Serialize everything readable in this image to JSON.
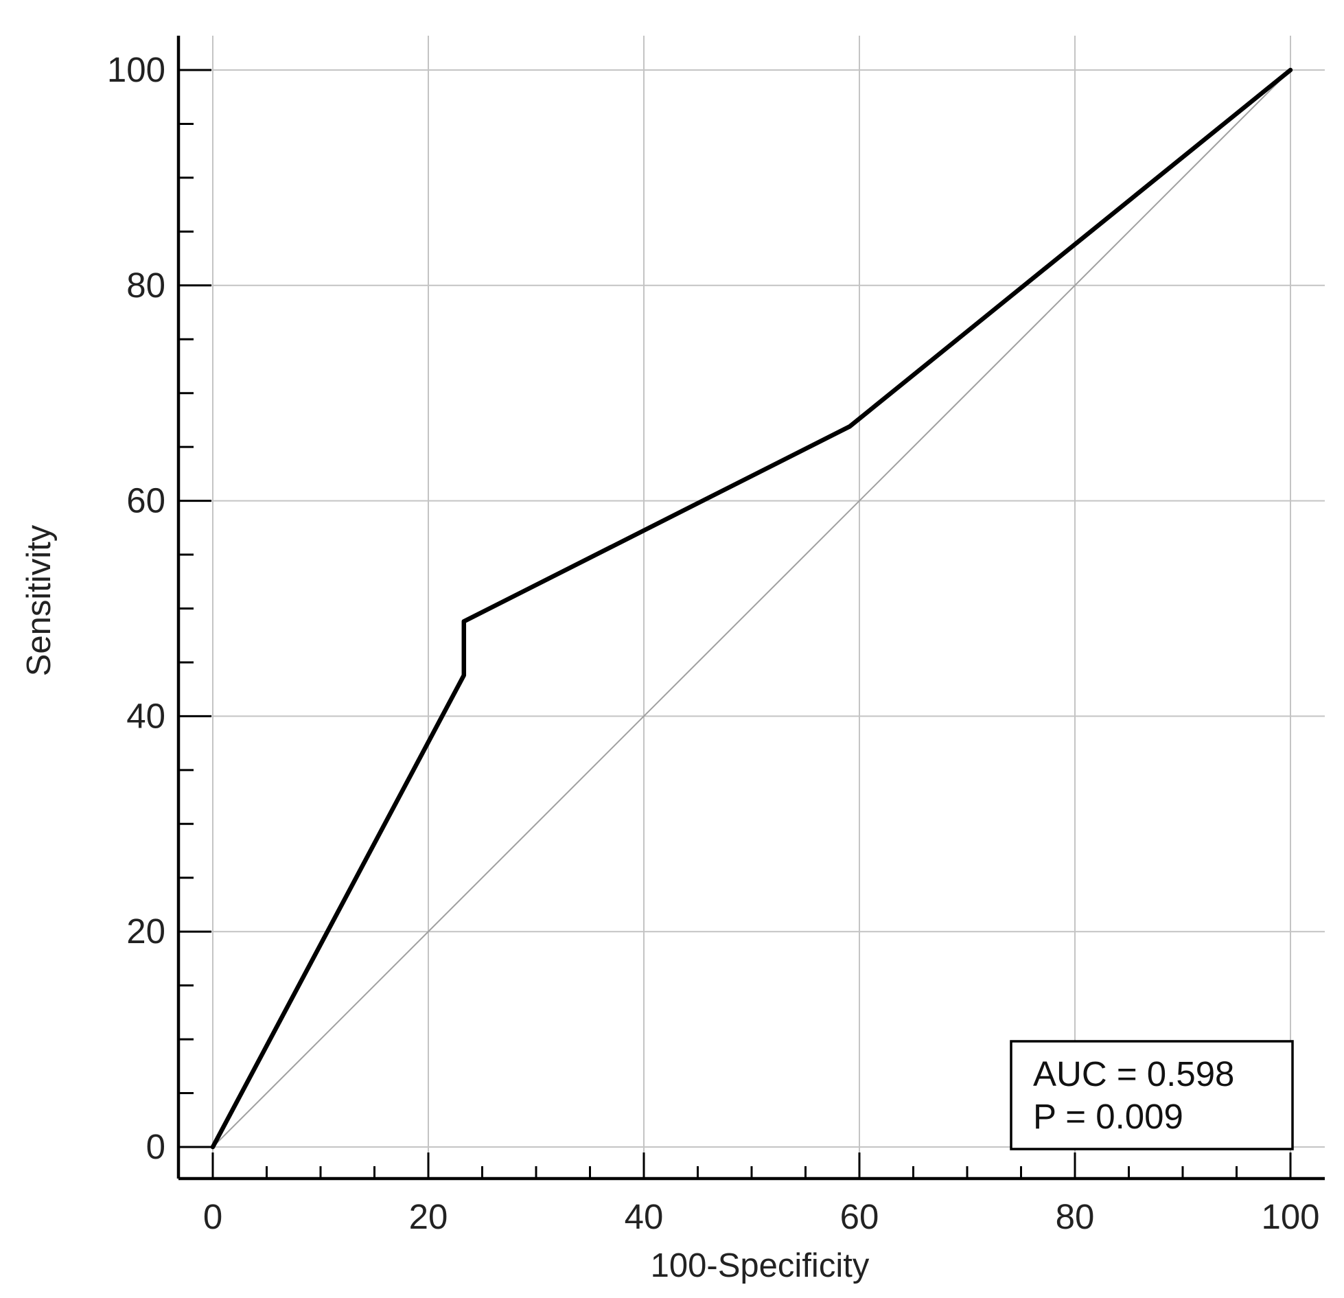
{
  "chart_data": {
    "type": "line",
    "title": "",
    "xlabel": "100-Specificity",
    "ylabel": "Sensitivity",
    "xlim": [
      0,
      100
    ],
    "ylim": [
      0,
      100
    ],
    "x_ticks": [
      "0",
      "20",
      "40",
      "60",
      "80",
      "100"
    ],
    "y_ticks": [
      "0",
      "20",
      "40",
      "60",
      "80",
      "100"
    ],
    "grid": true,
    "series": [
      {
        "role": "roc-curve",
        "color": "#000000",
        "points": [
          [
            0,
            0
          ],
          [
            23.3,
            43.8
          ],
          [
            23.3,
            48.8
          ],
          [
            59.1,
            66.9
          ],
          [
            100,
            100
          ]
        ]
      },
      {
        "role": "reference-diagonal",
        "color": "#a0a0a0",
        "points": [
          [
            0,
            0
          ],
          [
            100,
            100
          ]
        ]
      }
    ],
    "annotations": {
      "auc": "AUC = 0.598",
      "p_value": "P = 0.009",
      "placement": "bottom-right"
    }
  }
}
